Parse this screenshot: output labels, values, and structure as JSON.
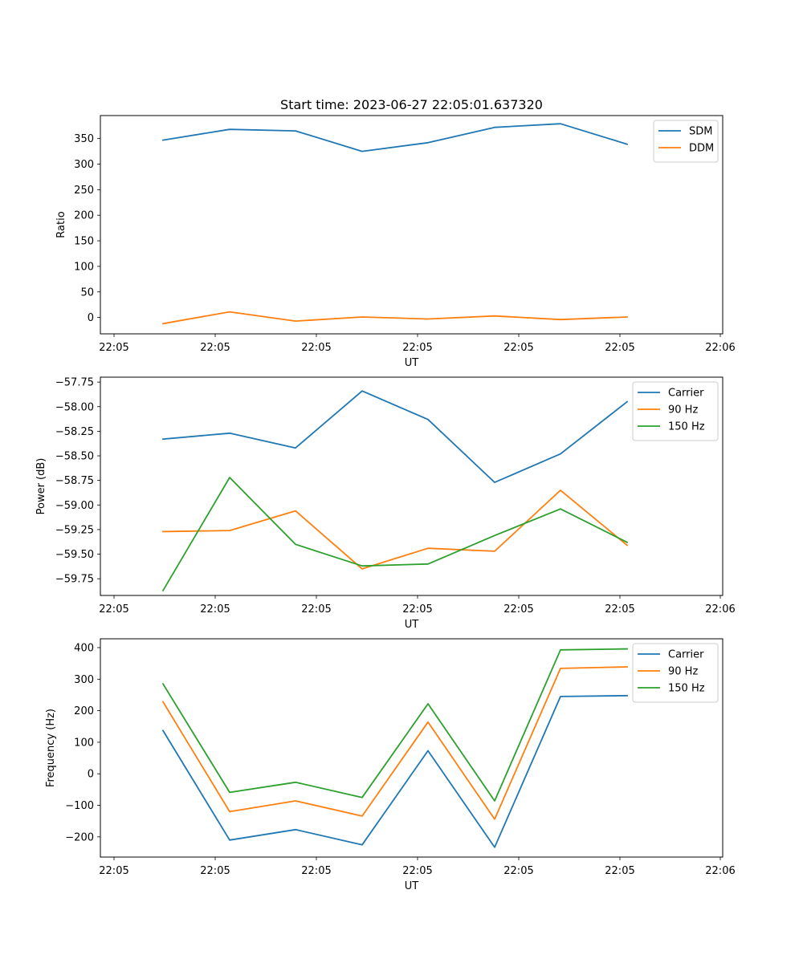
{
  "chart_data": [
    {
      "type": "line",
      "title": "Start time: 2023-06-27 22:05:01.637320",
      "xlabel": "UT",
      "ylabel": "Ratio",
      "x_tick_labels": [
        "22:05",
        "22:05",
        "22:05",
        "22:05",
        "22:05",
        "22:05",
        "22:05",
        "22:06"
      ],
      "ylim": [
        -32,
        395
      ],
      "y_ticks": [
        0,
        50,
        100,
        150,
        200,
        250,
        300,
        350
      ],
      "legend_position": "top-right",
      "series": [
        {
          "name": "SDM",
          "color": "#1f77b4",
          "values": [
            347,
            368,
            365,
            325,
            342,
            372,
            379,
            339
          ]
        },
        {
          "name": "DDM",
          "color": "#ff7f0e",
          "values": [
            -12,
            11,
            -7,
            1,
            -3,
            3,
            -4,
            1
          ]
        }
      ]
    },
    {
      "type": "line",
      "title": "",
      "xlabel": "UT",
      "ylabel": "Power (dB)",
      "x_tick_labels": [
        "22:05",
        "22:05",
        "22:05",
        "22:05",
        "22:05",
        "22:05",
        "22:05",
        "22:06"
      ],
      "ylim": [
        -59.92,
        -57.7
      ],
      "y_ticks": [
        -59.75,
        -59.5,
        -59.25,
        -59.0,
        -58.75,
        -58.5,
        -58.25,
        -58.0,
        -57.75
      ],
      "y_tick_labels": [
        "−59.75",
        "−59.50",
        "−59.25",
        "−59.00",
        "−58.75",
        "−58.50",
        "−58.25",
        "−58.00",
        "−57.75"
      ],
      "legend_position": "top-right",
      "series": [
        {
          "name": "Carrier",
          "color": "#1f77b4",
          "values": [
            -58.33,
            -58.27,
            -58.42,
            -57.84,
            -58.13,
            -58.77,
            -58.48,
            -57.95
          ]
        },
        {
          "name": "90 Hz",
          "color": "#ff7f0e",
          "values": [
            -59.27,
            -59.26,
            -59.06,
            -59.65,
            -59.44,
            -59.47,
            -58.85,
            -59.41
          ]
        },
        {
          "name": "150 Hz",
          "color": "#2ca02c",
          "values": [
            -59.87,
            -58.72,
            -59.4,
            -59.62,
            -59.6,
            -59.31,
            -59.04,
            -59.38
          ]
        }
      ]
    },
    {
      "type": "line",
      "title": "",
      "xlabel": "UT",
      "ylabel": "Frequency (Hz)",
      "x_tick_labels": [
        "22:05",
        "22:05",
        "22:05",
        "22:05",
        "22:05",
        "22:05",
        "22:05",
        "22:06"
      ],
      "ylim": [
        -264,
        428
      ],
      "y_ticks": [
        -200,
        -100,
        0,
        100,
        200,
        300,
        400
      ],
      "y_tick_labels": [
        "−200",
        "−100",
        "0",
        "100",
        "200",
        "300",
        "400"
      ],
      "legend_position": "top-right",
      "series": [
        {
          "name": "Carrier",
          "color": "#1f77b4",
          "values": [
            137,
            -210,
            -177,
            -225,
            73,
            -233,
            245,
            248
          ]
        },
        {
          "name": "90 Hz",
          "color": "#ff7f0e",
          "values": [
            228,
            -120,
            -86,
            -134,
            164,
            -144,
            334,
            339
          ]
        },
        {
          "name": "150 Hz",
          "color": "#2ca02c",
          "values": [
            285,
            -59,
            -27,
            -75,
            222,
            -86,
            393,
            396
          ]
        }
      ]
    }
  ]
}
